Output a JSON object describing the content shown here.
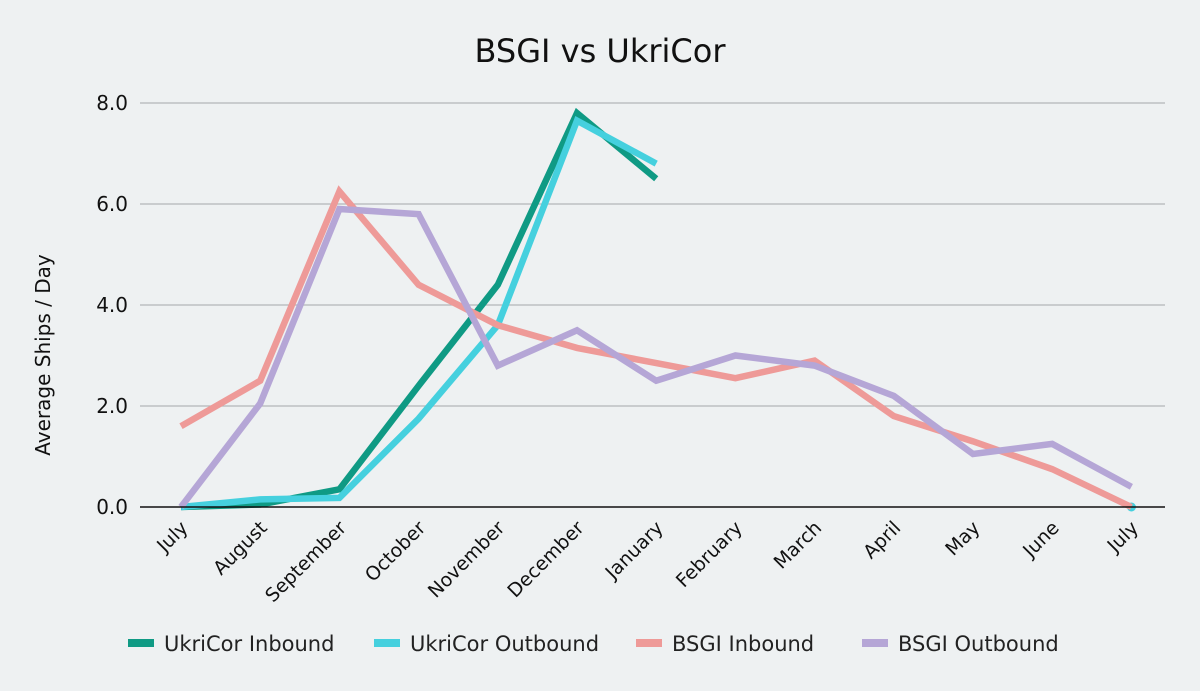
{
  "chart_data": {
    "type": "line",
    "title": "BSGI vs UkriCor",
    "xlabel": "",
    "ylabel": "Average Ships / Day",
    "categories": [
      "July",
      "August",
      "September",
      "October",
      "November",
      "December",
      "January",
      "February",
      "March",
      "April",
      "May",
      "June",
      "July"
    ],
    "ylim": [
      0,
      8
    ],
    "yticks": [
      "0.0",
      "2.0",
      "4.0",
      "6.0",
      "8.0"
    ],
    "grid": true,
    "legend_position": "bottom",
    "series": [
      {
        "name": "UkriCor Inbound",
        "color": "#0f9a84",
        "values": [
          0.0,
          0.05,
          0.35,
          2.4,
          4.4,
          7.8,
          6.5,
          null,
          null,
          null,
          null,
          null,
          null
        ]
      },
      {
        "name": "UkriCor Outbound",
        "color": "#45d0de",
        "values": [
          0.0,
          0.15,
          0.18,
          1.75,
          3.6,
          7.65,
          6.8,
          null,
          null,
          null,
          null,
          null,
          0.0
        ]
      },
      {
        "name": "BSGI Inbound",
        "color": "#ee9a98",
        "values": [
          1.6,
          2.5,
          6.25,
          4.4,
          3.6,
          3.15,
          2.85,
          2.55,
          2.9,
          1.8,
          1.3,
          0.75,
          0.0
        ]
      },
      {
        "name": "BSGI Outbound",
        "color": "#b5a6d6",
        "values": [
          0.0,
          2.05,
          5.9,
          5.8,
          2.8,
          3.5,
          2.5,
          3.0,
          2.8,
          2.2,
          1.05,
          1.25,
          0.4
        ]
      }
    ]
  }
}
